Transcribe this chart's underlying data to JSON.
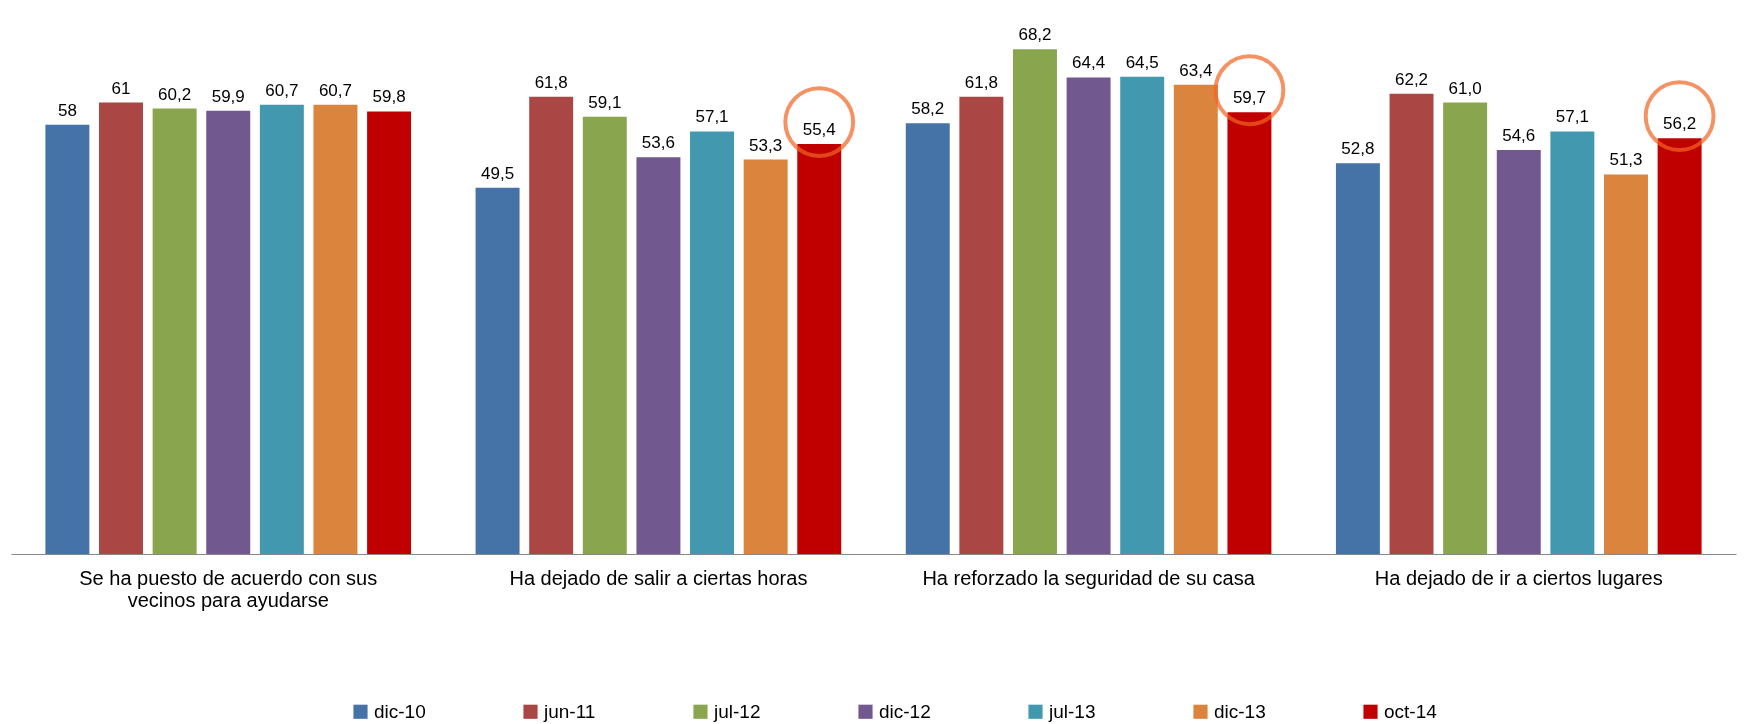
{
  "chart_data": {
    "type": "bar",
    "categories": [
      "Se ha puesto de acuerdo con sus vecinos para ayudarse",
      "Ha dejado de salir a ciertas horas",
      "Ha reforzado la seguridad de su casa",
      "Ha dejado de ir a ciertos lugares"
    ],
    "series": [
      {
        "name": "dic-10",
        "color": "#4572a7",
        "values": [
          58,
          49.5,
          58.2,
          52.8
        ],
        "value_labels": [
          "58",
          "49,5",
          "58,2",
          "52,8"
        ]
      },
      {
        "name": "jun-11",
        "color": "#aa4643",
        "values": [
          61,
          61.8,
          61.8,
          62.2
        ],
        "value_labels": [
          "61",
          "61,8",
          "61,8",
          "62,2"
        ]
      },
      {
        "name": "jul-12",
        "color": "#89a54e",
        "values": [
          60.2,
          59.1,
          68.2,
          61.0
        ],
        "value_labels": [
          "60,2",
          "59,1",
          "68,2",
          "61,0"
        ]
      },
      {
        "name": "dic-12",
        "color": "#71588f",
        "values": [
          59.9,
          53.6,
          64.4,
          54.6
        ],
        "value_labels": [
          "59,9",
          "53,6",
          "64,4",
          "54,6"
        ]
      },
      {
        "name": "jul-13",
        "color": "#4198af",
        "values": [
          60.7,
          57.1,
          64.5,
          57.1
        ],
        "value_labels": [
          "60,7",
          "57,1",
          "64,5",
          "57,1"
        ]
      },
      {
        "name": "dic-13",
        "color": "#db843d",
        "values": [
          60.7,
          53.3,
          63.4,
          51.3
        ],
        "value_labels": [
          "60,7",
          "53,3",
          "63,4",
          "51,3"
        ]
      },
      {
        "name": "oct-14",
        "color": "#c00000",
        "values": [
          59.8,
          55.4,
          59.7,
          56.2
        ],
        "value_labels": [
          "59,8",
          "55,4",
          "59,7",
          "56,2"
        ]
      }
    ],
    "legend": "bottom"
  }
}
